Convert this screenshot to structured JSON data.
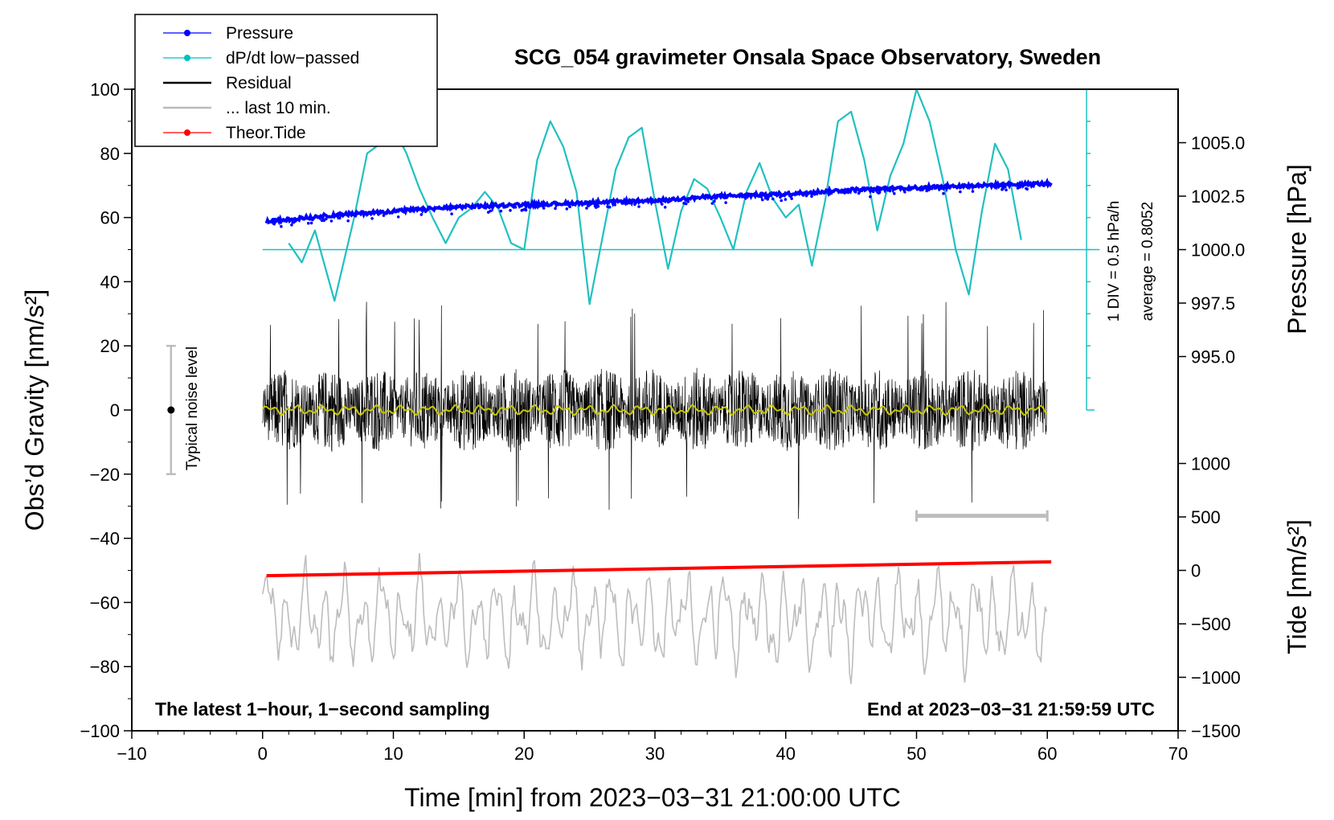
{
  "chart_data": {
    "type": "line",
    "title": "SCG_054 gravimeter Onsala Space Observatory, Sweden",
    "xlabel": "Time [min] from 2023−03−31 21:00:00 UTC",
    "ylabel_left": "Obs’d Gravity [nm/s²]",
    "ylabel_right_pressure": "Pressure [hPa]",
    "ylabel_right_tide": "Tide [nm/s²]",
    "xlim": [
      -10,
      70
    ],
    "ylim": [
      -100,
      100
    ],
    "x_ticks": [
      -10,
      0,
      10,
      20,
      30,
      40,
      50,
      60,
      70
    ],
    "x_tick_labels": [
      "−10",
      "0",
      "10",
      "20",
      "30",
      "40",
      "50",
      "60",
      "70"
    ],
    "y_ticks": [
      -100,
      -80,
      -60,
      -40,
      -20,
      0,
      20,
      40,
      60,
      80,
      100
    ],
    "y_tick_labels": [
      "−100",
      "−80",
      "−60",
      "−40",
      "−20",
      "0",
      "20",
      "40",
      "60",
      "80",
      "100"
    ],
    "pressure_axis": {
      "ticks": [
        995.0,
        997.5,
        1000.0,
        1002.5,
        1005.0
      ],
      "tick_labels": [
        "995.0",
        "997.5",
        "1000.0",
        "1002.5",
        "1005.0"
      ],
      "gravity_at_1000": 50,
      "gravity_per_hPa": 6.667
    },
    "tide_axis": {
      "ticks": [
        -1500,
        -1000,
        -500,
        0,
        500,
        1000
      ],
      "tick_labels": [
        "−1500",
        "−1000",
        "−500",
        "0",
        "500",
        "1000"
      ],
      "gravity_at_0": -50,
      "gravity_per_unit": 0.03333
    },
    "dpdt_scale": {
      "label_div": "1 DIV = 0.5 hPa/h",
      "label_avg": "average = 0.8052",
      "baseline_gravity": 50,
      "x_min": 63,
      "range_gravity": [
        0,
        100
      ],
      "divisions": 10
    },
    "legend": [
      {
        "label": "Pressure",
        "color": "#0000ff",
        "marker": true
      },
      {
        "label": "dP/dt low−passed",
        "color": "#00c0c0",
        "marker": true
      },
      {
        "label": "Residual",
        "color": "#000000",
        "marker": false
      },
      {
        "label": "... last 10 min.",
        "color": "#bbbbbb",
        "marker": false
      },
      {
        "label": "Theor.Tide",
        "color": "#ff0000",
        "marker": true
      }
    ],
    "pressure_series": {
      "x": [
        0.3,
        5,
        10,
        15,
        20,
        25,
        30,
        35,
        40,
        45,
        50,
        55,
        60.3
      ],
      "pressure_hPa": [
        1001.3,
        1001.6,
        1001.8,
        1002.0,
        1002.1,
        1002.2,
        1002.3,
        1002.5,
        1002.6,
        1002.8,
        1002.9,
        1003.0,
        1003.1
      ]
    },
    "dpdt_series": {
      "x": [
        2,
        3,
        4,
        5.5,
        7,
        8,
        9,
        10,
        11,
        12,
        13,
        14,
        15,
        16,
        17,
        18,
        19,
        20,
        21,
        22,
        23,
        24,
        25,
        26,
        27,
        28,
        29,
        30,
        31,
        32,
        33,
        34,
        35,
        36,
        37,
        38,
        39,
        40,
        41,
        42,
        43,
        44,
        45,
        46,
        47,
        48,
        49,
        50,
        51,
        52,
        53,
        54,
        55,
        56,
        57,
        58
      ],
      "y": [
        52,
        46,
        56,
        34,
        60,
        80,
        83,
        88,
        80,
        69,
        60,
        52,
        60,
        63,
        68,
        63,
        52,
        50,
        78,
        90,
        82,
        68,
        33,
        54,
        75,
        85,
        88,
        65,
        44,
        62,
        72,
        69,
        60,
        50,
        68,
        77,
        66,
        60,
        64,
        45,
        65,
        90,
        93,
        78,
        56,
        73,
        83,
        100,
        90,
        72,
        50,
        36,
        62,
        83,
        75,
        53
      ]
    },
    "residual_series": {
      "x_range": [
        0,
        60
      ],
      "typical_amplitude": 12,
      "max_amplitude": 34
    },
    "smoothed_residual": {
      "x_range": [
        0,
        60
      ],
      "value": 0,
      "color": "#c8c800"
    },
    "last10_series": {
      "x_range": [
        0,
        60
      ],
      "center": -65,
      "amplitude": 15
    },
    "last10_bar": {
      "x_range": [
        50,
        60
      ],
      "y": -33
    },
    "tide_series": {
      "x": [
        0.3,
        60.3
      ],
      "tide_nm_s2": [
        -50,
        80
      ]
    },
    "noise_level": {
      "x": -7,
      "center": 0,
      "range": [
        -20,
        20
      ],
      "label": "Typical noise level"
    },
    "annotations": {
      "bottom_left": "The latest 1−hour, 1−second sampling",
      "bottom_right": "End at 2023−03−31 21:59:59 UTC"
    }
  }
}
